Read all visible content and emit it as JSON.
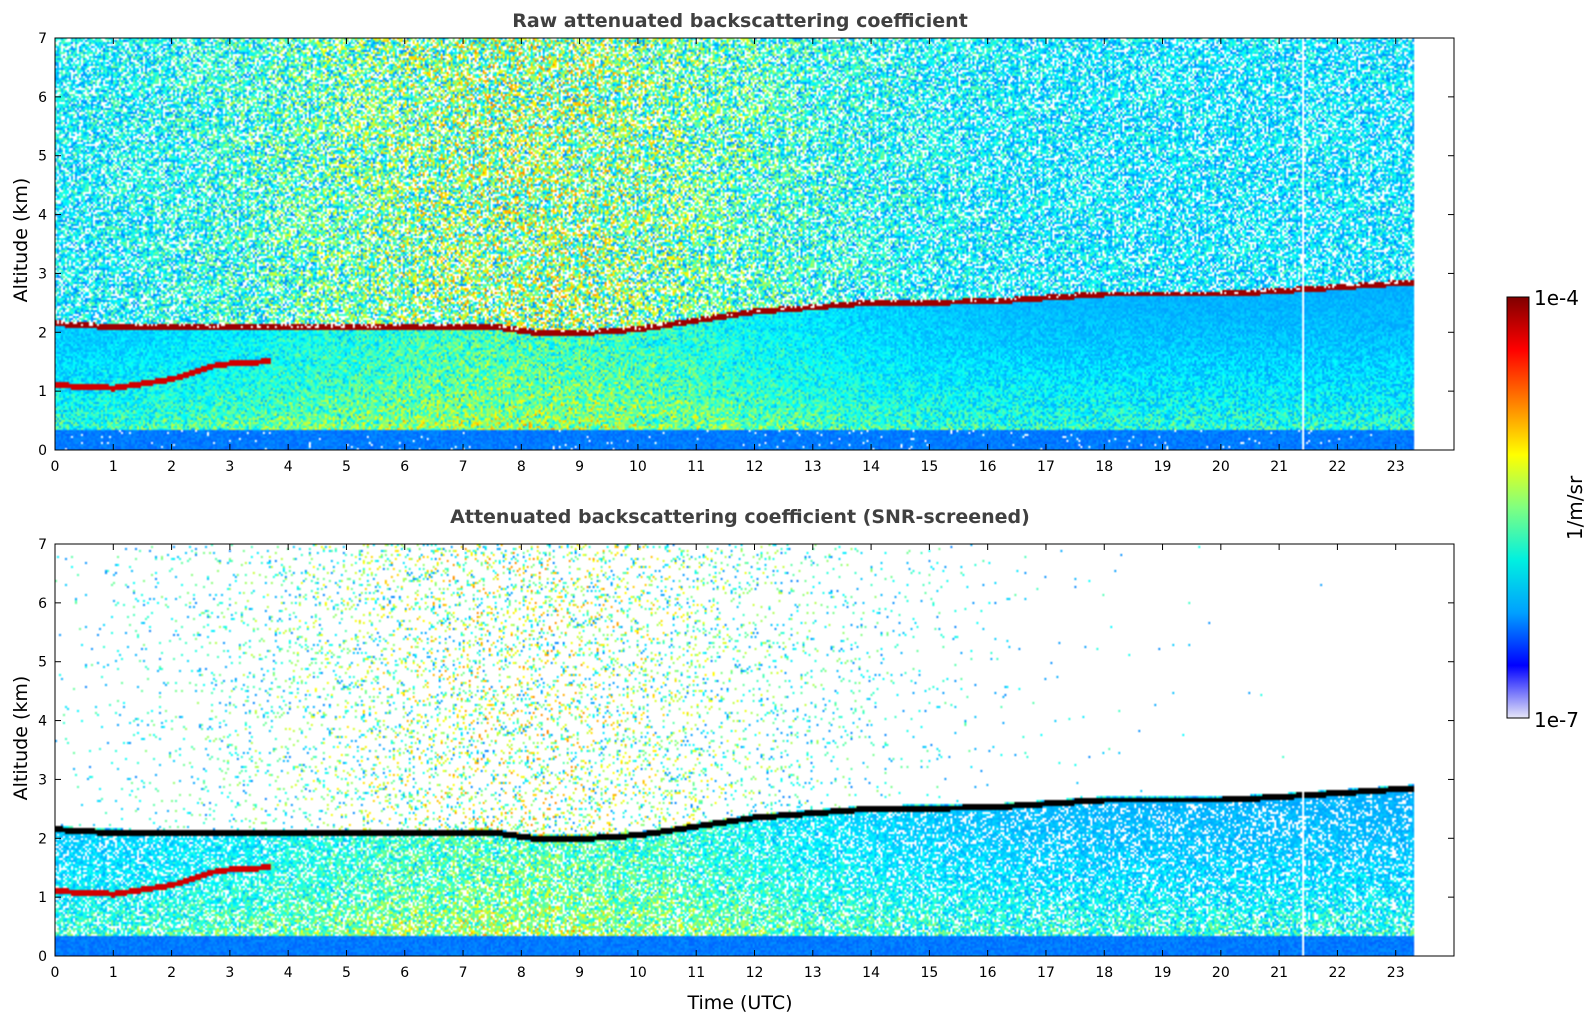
{
  "chart_data": [
    {
      "type": "heatmap",
      "title": "Raw attenuated backscattering coefficient",
      "xlabel": "",
      "ylabel": "Altitude (km)",
      "xlim": [
        0,
        24
      ],
      "ylim": [
        0,
        7
      ],
      "xticks": [
        0,
        1,
        2,
        3,
        4,
        5,
        6,
        7,
        8,
        9,
        10,
        11,
        12,
        13,
        14,
        15,
        16,
        17,
        18,
        19,
        20,
        21,
        22,
        23
      ],
      "yticks": [
        0,
        1,
        2,
        3,
        4,
        5,
        6,
        7
      ],
      "data_extent_hours": [
        0,
        23.3
      ],
      "data_gap_hour": 21.4,
      "screened": false,
      "cloud_layer_km": [
        [
          0,
          2.15
        ],
        [
          0.8,
          2.1
        ],
        [
          4,
          2.08
        ],
        [
          7.5,
          2.1
        ],
        [
          8.2,
          2.0
        ],
        [
          9.2,
          2.0
        ],
        [
          10,
          2.05
        ],
        [
          12,
          2.35
        ],
        [
          14,
          2.5
        ],
        [
          16,
          2.52
        ],
        [
          18,
          2.65
        ],
        [
          20,
          2.65
        ],
        [
          21,
          2.7
        ],
        [
          23.3,
          2.85
        ]
      ],
      "lower_layer_km": [
        [
          0,
          1.1
        ],
        [
          1,
          1.05
        ],
        [
          2,
          1.2
        ],
        [
          2.8,
          1.45
        ],
        [
          3.6,
          1.5
        ]
      ]
    },
    {
      "type": "heatmap",
      "title": "Attenuated backscattering coefficient (SNR-screened)",
      "xlabel": "Time (UTC)",
      "ylabel": "Altitude (km)",
      "xlim": [
        0,
        24
      ],
      "ylim": [
        0,
        7
      ],
      "xticks": [
        0,
        1,
        2,
        3,
        4,
        5,
        6,
        7,
        8,
        9,
        10,
        11,
        12,
        13,
        14,
        15,
        16,
        17,
        18,
        19,
        20,
        21,
        22,
        23
      ],
      "yticks": [
        0,
        1,
        2,
        3,
        4,
        5,
        6,
        7
      ],
      "data_extent_hours": [
        0,
        23.3
      ],
      "data_gap_hour": 21.4,
      "screened": true,
      "cloud_layer_km": [
        [
          0,
          2.15
        ],
        [
          0.8,
          2.1
        ],
        [
          4,
          2.08
        ],
        [
          7.5,
          2.1
        ],
        [
          8.2,
          2.0
        ],
        [
          9.2,
          2.0
        ],
        [
          10,
          2.05
        ],
        [
          12,
          2.35
        ],
        [
          14,
          2.5
        ],
        [
          16,
          2.52
        ],
        [
          18,
          2.65
        ],
        [
          20,
          2.65
        ],
        [
          21,
          2.7
        ],
        [
          23.3,
          2.85
        ]
      ],
      "lower_layer_km": [
        [
          0,
          1.1
        ],
        [
          1,
          1.05
        ],
        [
          2,
          1.2
        ],
        [
          2.8,
          1.45
        ],
        [
          3.6,
          1.5
        ]
      ]
    }
  ],
  "colorbar": {
    "label": "1/m/sr",
    "max_label": "1e-4",
    "min_label": "1e-7",
    "colormap": "jet",
    "colors": [
      "#e6e6f7",
      "#0000ff",
      "#00a0ff",
      "#00f0e0",
      "#80ff80",
      "#ffff00",
      "#ff8000",
      "#ff0000",
      "#800000"
    ]
  }
}
